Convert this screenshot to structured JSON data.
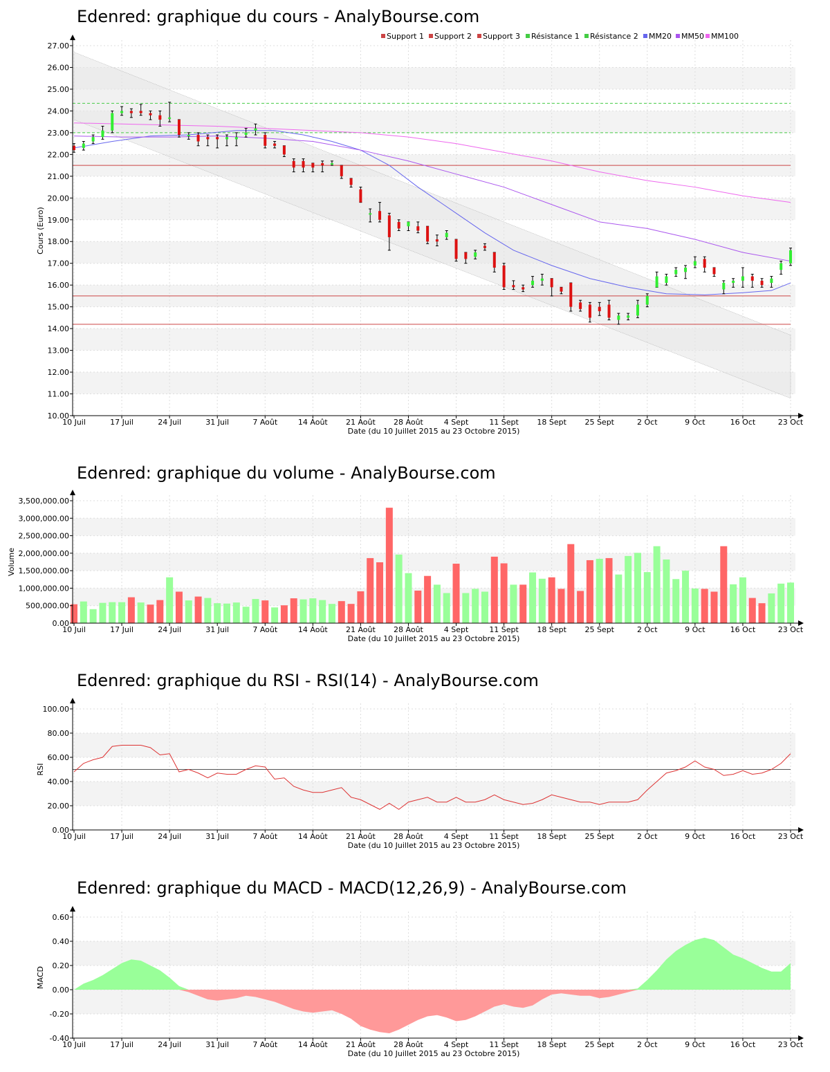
{
  "colors": {
    "up": "#33ee33",
    "down": "#dd1111",
    "vol_up": "#99ff99",
    "vol_down": "#ff6666",
    "support": "#cc4444",
    "resistance": "#44cc44",
    "mm20": "#6666ee",
    "mm50": "#aa55ee",
    "mm100": "#ee66ee",
    "rsi": "#dd3333",
    "macd_pos": "#99ff99",
    "macd_neg": "#ff9999",
    "band": "#e8e8e8"
  },
  "chart_data": [
    {
      "id": "price",
      "type": "candlestick",
      "title": "Edenred: graphique du cours - AnalyBourse.com",
      "ylabel": "Cours (Euro)",
      "xlabel": "Date (du 10 Juillet 2015 au 23 Octobre 2015)",
      "ylim": [
        10,
        27
      ],
      "yticks": [
        10,
        11,
        12,
        13,
        14,
        15,
        16,
        17,
        18,
        19,
        20,
        21,
        22,
        23,
        24,
        25,
        26,
        27
      ],
      "xticks": [
        {
          "i": 0,
          "label": "10 Juil"
        },
        {
          "i": 5,
          "label": "17 Juil"
        },
        {
          "i": 10,
          "label": "24 Juil"
        },
        {
          "i": 15,
          "label": "31 Juil"
        },
        {
          "i": 20,
          "label": "7 Août"
        },
        {
          "i": 25,
          "label": "14 Août"
        },
        {
          "i": 30,
          "label": "21 Août"
        },
        {
          "i": 35,
          "label": "28 Août"
        },
        {
          "i": 40,
          "label": "4 Sept"
        },
        {
          "i": 45,
          "label": "11 Sept"
        },
        {
          "i": 50,
          "label": "18 Sept"
        },
        {
          "i": 55,
          "label": "25 Sept"
        },
        {
          "i": 60,
          "label": "2 Oct"
        },
        {
          "i": 65,
          "label": "9 Oct"
        },
        {
          "i": 70,
          "label": "16 Oct"
        },
        {
          "i": 75,
          "label": "23 Oct"
        }
      ],
      "legend": [
        "Support 1",
        "Support 2",
        "Support 3",
        "Résistance 1",
        "Résistance 2",
        "MM20",
        "MM50",
        "MM100"
      ],
      "levels": {
        "support": [
          21.5,
          15.5,
          14.2
        ],
        "resistance": [
          23.0,
          24.35
        ]
      },
      "candles": [
        [
          22.4,
          22.2,
          22.5,
          22.1
        ],
        [
          22.3,
          22.5,
          22.6,
          22.2
        ],
        [
          22.6,
          22.8,
          22.9,
          22.5
        ],
        [
          22.8,
          23.1,
          23.3,
          22.7
        ],
        [
          23.1,
          23.9,
          24.0,
          23.0
        ],
        [
          23.9,
          24.0,
          24.2,
          23.8
        ],
        [
          24.0,
          23.9,
          24.1,
          23.7
        ],
        [
          24.0,
          23.9,
          24.3,
          23.8
        ],
        [
          23.9,
          23.8,
          24.0,
          23.6
        ],
        [
          23.8,
          23.6,
          24.0,
          23.3
        ],
        [
          23.7,
          23.7,
          24.4,
          23.5
        ],
        [
          23.6,
          22.9,
          23.6,
          22.8
        ],
        [
          22.9,
          22.9,
          23.0,
          22.7
        ],
        [
          22.9,
          22.6,
          23.0,
          22.4
        ],
        [
          22.8,
          22.7,
          22.9,
          22.4
        ],
        [
          22.8,
          22.7,
          22.9,
          22.3
        ],
        [
          22.7,
          22.8,
          22.9,
          22.4
        ],
        [
          22.7,
          22.8,
          23.0,
          22.4
        ],
        [
          22.9,
          23.0,
          23.2,
          22.8
        ],
        [
          23.1,
          23.2,
          23.4,
          22.9
        ],
        [
          22.9,
          22.4,
          23.0,
          22.3
        ],
        [
          22.5,
          22.4,
          22.6,
          22.3
        ],
        [
          22.4,
          22.0,
          22.4,
          21.9
        ],
        [
          21.7,
          21.4,
          21.8,
          21.2
        ],
        [
          21.7,
          21.4,
          21.8,
          21.2
        ],
        [
          21.6,
          21.4,
          21.6,
          21.2
        ],
        [
          21.6,
          21.5,
          21.7,
          21.2
        ],
        [
          21.6,
          21.6,
          21.7,
          21.5
        ],
        [
          21.5,
          21.0,
          21.5,
          20.9
        ],
        [
          20.9,
          20.6,
          20.9,
          20.5
        ],
        [
          20.4,
          19.8,
          20.5,
          19.8
        ],
        [
          19.3,
          19.3,
          19.5,
          18.9
        ],
        [
          19.4,
          19.0,
          19.8,
          18.9
        ],
        [
          19.2,
          18.2,
          19.3,
          17.6
        ],
        [
          18.9,
          18.6,
          19.0,
          18.5
        ],
        [
          18.7,
          18.9,
          18.9,
          18.5
        ],
        [
          18.7,
          18.5,
          18.9,
          18.4
        ],
        [
          18.7,
          18.0,
          18.7,
          17.9
        ],
        [
          18.1,
          18.0,
          18.3,
          17.8
        ],
        [
          18.2,
          18.4,
          18.5,
          18.1
        ],
        [
          18.1,
          17.2,
          18.1,
          17.1
        ],
        [
          17.5,
          17.2,
          17.5,
          17.0
        ],
        [
          17.3,
          17.5,
          17.6,
          17.2
        ],
        [
          17.8,
          17.7,
          17.9,
          17.6
        ],
        [
          17.5,
          16.8,
          17.5,
          16.6
        ],
        [
          16.9,
          15.9,
          17.0,
          15.8
        ],
        [
          16.0,
          15.9,
          16.2,
          15.8
        ],
        [
          15.9,
          15.8,
          16.0,
          15.7
        ],
        [
          16.0,
          16.2,
          16.4,
          15.9
        ],
        [
          16.2,
          16.3,
          16.5,
          16.0
        ],
        [
          16.3,
          15.9,
          16.3,
          15.5
        ],
        [
          15.9,
          15.7,
          15.9,
          15.6
        ],
        [
          16.1,
          15.0,
          16.1,
          14.8
        ],
        [
          15.2,
          14.9,
          15.3,
          14.8
        ],
        [
          15.1,
          14.5,
          15.2,
          14.3
        ],
        [
          15.0,
          14.8,
          15.2,
          14.6
        ],
        [
          15.1,
          14.5,
          15.3,
          14.4
        ],
        [
          14.4,
          14.6,
          14.7,
          14.2
        ],
        [
          14.5,
          14.6,
          14.7,
          14.4
        ],
        [
          14.6,
          15.1,
          15.3,
          14.5
        ],
        [
          15.1,
          15.5,
          15.6,
          15.0
        ],
        [
          15.9,
          16.4,
          16.6,
          15.9
        ],
        [
          16.1,
          16.4,
          16.5,
          16.0
        ],
        [
          16.5,
          16.7,
          16.8,
          16.4
        ],
        [
          16.6,
          16.8,
          16.9,
          16.3
        ],
        [
          16.9,
          17.1,
          17.3,
          16.8
        ],
        [
          17.2,
          16.8,
          17.3,
          16.6
        ],
        [
          16.8,
          16.5,
          16.8,
          16.4
        ],
        [
          15.8,
          16.1,
          16.2,
          15.6
        ],
        [
          16.1,
          16.2,
          16.3,
          15.9
        ],
        [
          16.2,
          16.4,
          16.8,
          15.9
        ],
        [
          16.4,
          16.2,
          16.5,
          15.9
        ],
        [
          16.2,
          16.0,
          16.3,
          15.9
        ],
        [
          16.1,
          16.3,
          16.4,
          15.9
        ],
        [
          16.7,
          17.0,
          17.1,
          16.5
        ],
        [
          17.0,
          17.6,
          17.7,
          16.9
        ]
      ],
      "ma": {
        "mm20": [
          [
            0,
            22.3
          ],
          [
            4,
            22.6
          ],
          [
            8,
            22.85
          ],
          [
            12,
            22.9
          ],
          [
            17,
            23.1
          ],
          [
            21,
            23.1
          ],
          [
            24,
            22.9
          ],
          [
            27,
            22.6
          ],
          [
            30,
            22.2
          ],
          [
            33,
            21.5
          ],
          [
            36,
            20.5
          ],
          [
            40,
            19.3
          ],
          [
            43,
            18.4
          ],
          [
            46,
            17.6
          ],
          [
            50,
            16.9
          ],
          [
            54,
            16.3
          ],
          [
            58,
            15.9
          ],
          [
            62,
            15.6
          ],
          [
            66,
            15.55
          ],
          [
            70,
            15.65
          ],
          [
            73,
            15.75
          ],
          [
            75,
            16.1
          ]
        ],
        "mm50": [
          [
            0,
            22.85
          ],
          [
            5,
            22.8
          ],
          [
            10,
            22.8
          ],
          [
            15,
            22.85
          ],
          [
            20,
            22.75
          ],
          [
            25,
            22.6
          ],
          [
            30,
            22.2
          ],
          [
            35,
            21.7
          ],
          [
            40,
            21.1
          ],
          [
            45,
            20.5
          ],
          [
            50,
            19.7
          ],
          [
            55,
            18.9
          ],
          [
            60,
            18.6
          ],
          [
            65,
            18.1
          ],
          [
            70,
            17.5
          ],
          [
            75,
            17.1
          ]
        ],
        "mm100": [
          [
            0,
            23.45
          ],
          [
            5,
            23.4
          ],
          [
            10,
            23.35
          ],
          [
            15,
            23.3
          ],
          [
            20,
            23.2
          ],
          [
            25,
            23.1
          ],
          [
            30,
            23.0
          ],
          [
            35,
            22.8
          ],
          [
            40,
            22.5
          ],
          [
            45,
            22.1
          ],
          [
            50,
            21.7
          ],
          [
            55,
            21.2
          ],
          [
            60,
            20.8
          ],
          [
            65,
            20.5
          ],
          [
            70,
            20.1
          ],
          [
            75,
            19.8
          ]
        ]
      },
      "channel": [
        [
          0,
          26.7,
          23.6
        ],
        [
          75,
          13.7,
          10.8
        ]
      ]
    },
    {
      "id": "volume",
      "type": "bar",
      "title": "Edenred: graphique du volume - AnalyBourse.com",
      "ylabel": "Volume",
      "xlabel": "Date (du 10 Juillet 2015 au 23 Octobre 2015)",
      "ylim": [
        0,
        3500000
      ],
      "yticks": [
        0,
        500000,
        1000000,
        1500000,
        2000000,
        2500000,
        3000000,
        3500000
      ],
      "yticklabels": [
        "0.00",
        "500,000.00",
        "1,000,000.00",
        "1,500,000.00",
        "2,000,000.00",
        "2,500,000.00",
        "3,000,000.00",
        "3,500,000.00"
      ],
      "values": [
        540000,
        620000,
        400000,
        580000,
        600000,
        600000,
        740000,
        590000,
        530000,
        660000,
        1310000,
        900000,
        650000,
        760000,
        720000,
        570000,
        560000,
        590000,
        470000,
        690000,
        650000,
        450000,
        510000,
        710000,
        680000,
        710000,
        660000,
        550000,
        630000,
        550000,
        910000,
        1860000,
        1740000,
        3300000,
        1960000,
        1430000,
        930000,
        1350000,
        1100000,
        860000,
        1700000,
        860000,
        980000,
        900000,
        1900000,
        1710000,
        1100000,
        1100000,
        1450000,
        1270000,
        1310000,
        980000,
        2260000,
        920000,
        1800000,
        1840000,
        1860000,
        1390000,
        1920000,
        2010000,
        1460000,
        2200000,
        1820000,
        1260000,
        1500000,
        990000,
        980000,
        900000,
        2200000,
        1110000,
        1310000,
        720000,
        570000,
        850000,
        1130000,
        1160000
      ]
    },
    {
      "id": "rsi",
      "type": "line",
      "title": "Edenred: graphique du RSI - RSI(14) - AnalyBourse.com",
      "ylabel": "RSI",
      "xlabel": "Date (du 10 Juillet 2015 au 23 Octobre 2015)",
      "ylim": [
        0,
        100
      ],
      "yticks": [
        0,
        20,
        40,
        60,
        80,
        100
      ],
      "reference": 50,
      "values": [
        48,
        55,
        58,
        60,
        69,
        70,
        70,
        70,
        68,
        62,
        63,
        48,
        50,
        47,
        43,
        47,
        46,
        46,
        50,
        53,
        52,
        42,
        43,
        36,
        33,
        31,
        31,
        33,
        35,
        27,
        25,
        21,
        17,
        22,
        17,
        23,
        25,
        27,
        23,
        23,
        27,
        23,
        23,
        25,
        29,
        25,
        23,
        21,
        22,
        25,
        29,
        27,
        25,
        23,
        23,
        21,
        23,
        23,
        23,
        25,
        33,
        40,
        47,
        49,
        52,
        57,
        52,
        50,
        45,
        46,
        49,
        46,
        47,
        50,
        55,
        63
      ]
    },
    {
      "id": "macd",
      "type": "area",
      "title": "Edenred: graphique du MACD - MACD(12,26,9) - AnalyBourse.com",
      "ylabel": "MACD",
      "xlabel": "Date (du 10 Juillet 2015 au 23 Octobre 2015)",
      "ylim": [
        -0.4,
        0.6
      ],
      "yticks": [
        -0.4,
        -0.2,
        0,
        0.2,
        0.4,
        0.6
      ],
      "values": [
        0,
        0.05,
        0.08,
        0.12,
        0.17,
        0.22,
        0.25,
        0.24,
        0.2,
        0.16,
        0.1,
        0.03,
        -0.02,
        -0.05,
        -0.08,
        -0.09,
        -0.08,
        -0.07,
        -0.05,
        -0.06,
        -0.08,
        -0.1,
        -0.13,
        -0.16,
        -0.18,
        -0.19,
        -0.18,
        -0.17,
        -0.2,
        -0.24,
        -0.3,
        -0.33,
        -0.35,
        -0.36,
        -0.33,
        -0.29,
        -0.25,
        -0.22,
        -0.21,
        -0.23,
        -0.26,
        -0.25,
        -0.22,
        -0.18,
        -0.14,
        -0.12,
        -0.14,
        -0.15,
        -0.13,
        -0.08,
        -0.04,
        -0.03,
        -0.04,
        -0.05,
        -0.05,
        -0.07,
        -0.06,
        -0.04,
        -0.02,
        0.01,
        0.08,
        0.16,
        0.25,
        0.32,
        0.37,
        0.41,
        0.43,
        0.41,
        0.35,
        0.29,
        0.26,
        0.22,
        0.18,
        0.15,
        0.15,
        0.22
      ]
    }
  ]
}
